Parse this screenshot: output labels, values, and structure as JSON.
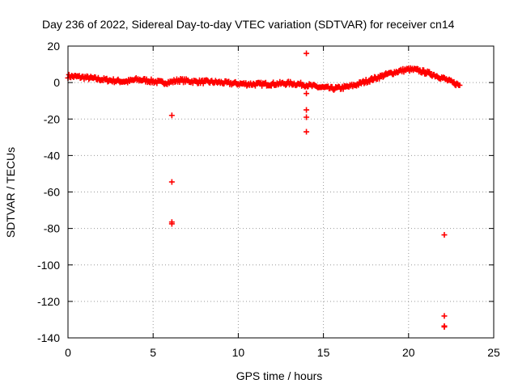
{
  "chart_data": {
    "type": "scatter",
    "title": "Day 236 of 2022, Sidereal Day-to-day VTEC variation (SDTVAR) for receiver cn14",
    "xlabel": "GPS time / hours",
    "ylabel": "SDTVAR / TECUs",
    "xlim": [
      0,
      25
    ],
    "ylim": [
      -140,
      20
    ],
    "xticks": [
      0,
      5,
      10,
      15,
      20,
      25
    ],
    "yticks": [
      20,
      0,
      -20,
      -40,
      -60,
      -80,
      -100,
      -120,
      -140
    ],
    "grid": true,
    "marker": "+",
    "series_color": "#ff0000",
    "trend": [
      [
        0.0,
        3.5
      ],
      [
        0.5,
        3.2
      ],
      [
        1.0,
        2.8
      ],
      [
        1.5,
        2.2
      ],
      [
        2.0,
        1.7
      ],
      [
        2.5,
        1.2
      ],
      [
        3.0,
        0.8
      ],
      [
        3.5,
        0.6
      ],
      [
        4.0,
        1.6
      ],
      [
        4.5,
        1.3
      ],
      [
        5.0,
        0.6
      ],
      [
        5.5,
        0.0
      ],
      [
        6.0,
        0.2
      ],
      [
        6.5,
        1.3
      ],
      [
        7.0,
        0.9
      ],
      [
        7.5,
        0.5
      ],
      [
        8.0,
        0.4
      ],
      [
        8.5,
        0.3
      ],
      [
        9.0,
        0.0
      ],
      [
        9.5,
        -0.4
      ],
      [
        10.0,
        -0.6
      ],
      [
        10.5,
        -0.8
      ],
      [
        11.0,
        -0.9
      ],
      [
        11.5,
        -0.9
      ],
      [
        12.0,
        -0.8
      ],
      [
        12.5,
        -0.6
      ],
      [
        13.0,
        -0.4
      ],
      [
        13.5,
        -0.8
      ],
      [
        14.0,
        -1.3
      ],
      [
        14.5,
        -2.2
      ],
      [
        15.0,
        -2.8
      ],
      [
        15.5,
        -3.3
      ],
      [
        16.0,
        -3.0
      ],
      [
        16.5,
        -2.2
      ],
      [
        17.0,
        -1.0
      ],
      [
        17.5,
        0.7
      ],
      [
        18.0,
        2.2
      ],
      [
        18.5,
        3.8
      ],
      [
        19.0,
        5.2
      ],
      [
        19.5,
        6.4
      ],
      [
        20.0,
        7.2
      ],
      [
        20.5,
        6.8
      ],
      [
        21.0,
        5.6
      ],
      [
        21.5,
        4.2
      ],
      [
        22.0,
        2.5
      ],
      [
        22.5,
        0.3
      ],
      [
        23.0,
        -1.5
      ]
    ],
    "outliers": [
      {
        "x": 6.1,
        "y": -18
      },
      {
        "x": 6.1,
        "y": -54.5
      },
      {
        "x": 6.1,
        "y": -76.5
      },
      {
        "x": 6.1,
        "y": -77.5
      },
      {
        "x": 14.0,
        "y": 16
      },
      {
        "x": 14.0,
        "y": -6
      },
      {
        "x": 14.0,
        "y": -15
      },
      {
        "x": 14.0,
        "y": -19
      },
      {
        "x": 14.0,
        "y": -27
      },
      {
        "x": 22.1,
        "y": -83.5
      },
      {
        "x": 22.1,
        "y": -128
      },
      {
        "x": 22.1,
        "y": -133.5
      },
      {
        "x": 22.1,
        "y": -134
      }
    ]
  }
}
